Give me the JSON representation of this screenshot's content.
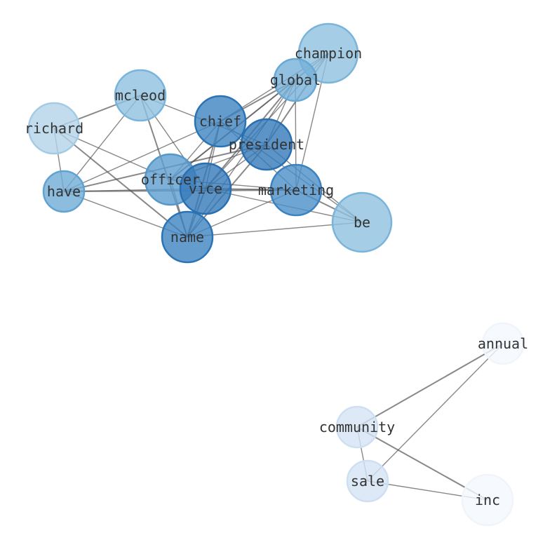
{
  "graph": {
    "nodes": [
      {
        "id": "champion",
        "label": "champion",
        "color": "#8fc0df",
        "edge": "#7ab4da"
      },
      {
        "id": "global",
        "label": "global",
        "color": "#75b0d9",
        "edge": "#66a8d6"
      },
      {
        "id": "mcleod",
        "label": "mcleod",
        "color": "#8fc0df",
        "edge": "#7ab4da"
      },
      {
        "id": "richard",
        "label": "richard",
        "color": "#b3d3e8",
        "edge": "#a3cbe5"
      },
      {
        "id": "chief",
        "label": "chief",
        "color": "#3d85c0",
        "edge": "#2a74b5"
      },
      {
        "id": "president",
        "label": "president",
        "color": "#3479b9",
        "edge": "#2a6fb0"
      },
      {
        "id": "officer",
        "label": "officer",
        "color": "#5d9ed0",
        "edge": "#5298cd"
      },
      {
        "id": "vice",
        "label": "vice",
        "color": "#3479b9",
        "edge": "#2a6fb0"
      },
      {
        "id": "marketing",
        "label": "marketing",
        "color": "#4b8fc7",
        "edge": "#3a82c0"
      },
      {
        "id": "have",
        "label": "have",
        "color": "#6fabd6",
        "edge": "#5fa3d2"
      },
      {
        "id": "be",
        "label": "be",
        "color": "#8fc0df",
        "edge": "#7ab4da"
      },
      {
        "id": "name",
        "label": "name",
        "color": "#3d85c0",
        "edge": "#2a74b5"
      },
      {
        "id": "annual",
        "label": "annual",
        "color": "#f4f8fd",
        "edge": "#f0f5fb"
      },
      {
        "id": "community",
        "label": "community",
        "color": "#d5e4f4",
        "edge": "#cddff1"
      },
      {
        "id": "sale",
        "label": "sale",
        "color": "#d5e4f4",
        "edge": "#cddff1"
      },
      {
        "id": "inc",
        "label": "inc",
        "color": "#f4f8fd",
        "edge": "#f0f5fb"
      }
    ],
    "edges": [
      [
        "richard",
        "mcleod"
      ],
      [
        "richard",
        "have"
      ],
      [
        "richard",
        "officer"
      ],
      [
        "richard",
        "name"
      ],
      [
        "mcleod",
        "have"
      ],
      [
        "mcleod",
        "president"
      ],
      [
        "mcleod",
        "name"
      ],
      [
        "mcleod",
        "vice"
      ],
      [
        "have",
        "chief"
      ],
      [
        "have",
        "president"
      ],
      [
        "have",
        "vice"
      ],
      [
        "have",
        "name"
      ],
      [
        "have",
        "marketing"
      ],
      [
        "chief",
        "marketing"
      ],
      [
        "chief",
        "be"
      ],
      [
        "chief",
        "name"
      ],
      [
        "chief",
        "vice"
      ],
      [
        "chief",
        "officer"
      ],
      [
        "chief",
        "global"
      ],
      [
        "chief",
        "champion"
      ],
      [
        "president",
        "global"
      ],
      [
        "president",
        "champion"
      ],
      [
        "president",
        "officer"
      ],
      [
        "president",
        "vice"
      ],
      [
        "president",
        "name"
      ],
      [
        "president",
        "be"
      ],
      [
        "global",
        "officer"
      ],
      [
        "global",
        "vice"
      ],
      [
        "global",
        "name"
      ],
      [
        "global",
        "marketing"
      ],
      [
        "champion",
        "officer"
      ],
      [
        "champion",
        "vice"
      ],
      [
        "champion",
        "marketing"
      ],
      [
        "marketing",
        "vice"
      ],
      [
        "marketing",
        "officer"
      ],
      [
        "marketing",
        "name"
      ],
      [
        "marketing",
        "be"
      ],
      [
        "be",
        "vice"
      ],
      [
        "be",
        "name"
      ],
      [
        "name",
        "vice"
      ],
      [
        "name",
        "officer"
      ],
      [
        "vice",
        "officer"
      ],
      [
        "annual",
        "community"
      ],
      [
        "annual",
        "sale"
      ],
      [
        "community",
        "sale"
      ],
      [
        "community",
        "inc"
      ],
      [
        "sale",
        "inc"
      ]
    ]
  }
}
